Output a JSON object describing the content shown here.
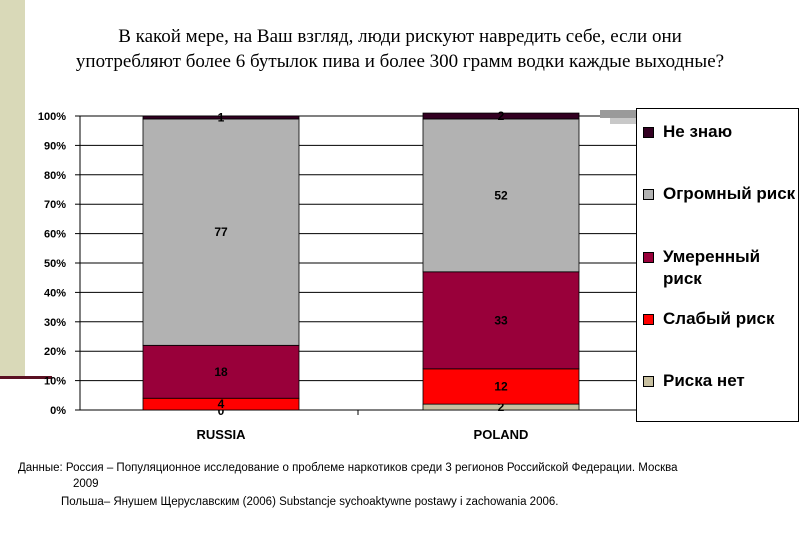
{
  "title": {
    "line1": "В какой мере, на Ваш взгляд, люди рискуют навредить себе, если они",
    "line2": "употребляют более 6 бутылок пива и более 300 грамм водки  каждые выходные?"
  },
  "chart_data": {
    "type": "bar",
    "stacked": true,
    "percent": true,
    "categories": [
      "RUSSIA",
      "POLAND"
    ],
    "ylim": [
      0,
      100
    ],
    "yticks": [
      "0%",
      "10%",
      "20%",
      "30%",
      "40%",
      "50%",
      "60%",
      "70%",
      "80%",
      "90%",
      "100%"
    ],
    "series": [
      {
        "name": "Риска нет",
        "values": [
          0,
          2
        ],
        "labels": [
          "0",
          "2"
        ],
        "color": "#c8c0a0"
      },
      {
        "name": "Слабый риск",
        "values": [
          4,
          12
        ],
        "labels": [
          "4",
          "12"
        ],
        "color": "#ff0000"
      },
      {
        "name": "Умеренный риск",
        "values": [
          18,
          33
        ],
        "labels": [
          "18",
          "33"
        ],
        "color": "#99003a"
      },
      {
        "name": "Огромный риск",
        "values": [
          77,
          52
        ],
        "labels": [
          "77",
          "52"
        ],
        "color": "#b2b2b2"
      },
      {
        "name": "Не знаю",
        "values": [
          1,
          2
        ],
        "labels": [
          "1",
          "2"
        ],
        "color": "#330022"
      }
    ],
    "legend_position": "right"
  },
  "legend": {
    "items": [
      {
        "label": "Не знаю",
        "color": "#330022"
      },
      {
        "label": "Огромный риск",
        "color": "#b2b2b2"
      },
      {
        "label": "Умеренный риск",
        "color": "#99003a"
      },
      {
        "label": "Слабый риск",
        "color": "#ff0000"
      },
      {
        "label": "Риска нет",
        "color": "#c8c0a0"
      }
    ]
  },
  "source": {
    "line1": "Данные: Россия – Популяционное исследование о проблеме наркотиков среди 3 регионов Российской Федерации. Москва",
    "line2": "2009",
    "line3": "Польша– Янушем Щеруславским (2006) Substancje sychoaktywne postawy i zachowania 2006."
  }
}
